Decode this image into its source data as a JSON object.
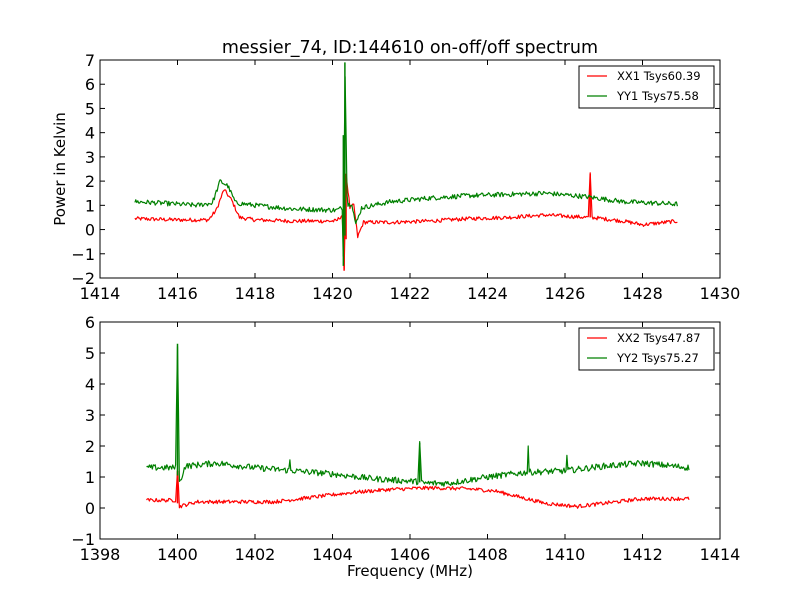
{
  "chart_data": [
    {
      "type": "line",
      "title": "messier_74, ID:144610 on-off/off spectrum",
      "xlabel": "",
      "ylabel": "Power in Kelvin",
      "xlim": [
        1414,
        1430
      ],
      "ylim": [
        -2,
        7
      ],
      "xticks": [
        "1414",
        "1416",
        "1418",
        "1420",
        "1422",
        "1424",
        "1426",
        "1428",
        "1430"
      ],
      "yticks": [
        "−2",
        "−1",
        "0",
        "1",
        "2",
        "3",
        "4",
        "5",
        "6",
        "7"
      ],
      "legend": "top-right",
      "grid": false,
      "series": [
        {
          "name": "XX1 Tsys60.39",
          "color": "#ff0000",
          "x_range": [
            1414.9,
            1428.9
          ],
          "baseline": [
            [
              1414.9,
              0.45
            ],
            [
              1416.0,
              0.4
            ],
            [
              1416.8,
              0.4
            ],
            [
              1417.0,
              0.8
            ],
            [
              1417.2,
              1.65
            ],
            [
              1417.4,
              1.2
            ],
            [
              1417.6,
              0.5
            ],
            [
              1418.0,
              0.4
            ],
            [
              1419.0,
              0.35
            ],
            [
              1420.1,
              0.35
            ],
            [
              1420.25,
              0.6
            ],
            [
              1420.3,
              -1.7
            ],
            [
              1420.35,
              2.3
            ],
            [
              1420.45,
              0.9
            ],
            [
              1420.55,
              1.0
            ],
            [
              1420.65,
              -0.3
            ],
            [
              1420.8,
              0.3
            ],
            [
              1421.5,
              0.3
            ],
            [
              1422.5,
              0.35
            ],
            [
              1423.5,
              0.45
            ],
            [
              1424.5,
              0.5
            ],
            [
              1425.5,
              0.6
            ],
            [
              1426.6,
              0.5
            ],
            [
              1426.65,
              2.3
            ],
            [
              1426.7,
              0.5
            ],
            [
              1427.5,
              0.35
            ],
            [
              1428.0,
              0.2
            ],
            [
              1428.9,
              0.35
            ]
          ],
          "noise": 0.08
        },
        {
          "name": "YY1 Tsys75.58",
          "color": "#008000",
          "x_range": [
            1414.9,
            1428.9
          ],
          "baseline": [
            [
              1414.9,
              1.15
            ],
            [
              1415.5,
              1.1
            ],
            [
              1416.5,
              1.0
            ],
            [
              1416.9,
              1.1
            ],
            [
              1417.1,
              2.0
            ],
            [
              1417.3,
              1.8
            ],
            [
              1417.5,
              1.1
            ],
            [
              1418.0,
              1.0
            ],
            [
              1419.0,
              0.85
            ],
            [
              1420.1,
              0.8
            ],
            [
              1420.25,
              0.9
            ],
            [
              1420.28,
              -1.5
            ],
            [
              1420.32,
              6.9
            ],
            [
              1420.38,
              1.0
            ],
            [
              1420.5,
              1.1
            ],
            [
              1420.6,
              0.2
            ],
            [
              1420.75,
              0.9
            ],
            [
              1421.5,
              1.15
            ],
            [
              1422.5,
              1.3
            ],
            [
              1423.5,
              1.4
            ],
            [
              1424.5,
              1.45
            ],
            [
              1425.5,
              1.5
            ],
            [
              1426.6,
              1.35
            ],
            [
              1427.5,
              1.15
            ],
            [
              1428.9,
              1.05
            ]
          ],
          "noise": 0.1
        }
      ]
    },
    {
      "type": "line",
      "title": "",
      "xlabel": "Frequency (MHz)",
      "ylabel": "",
      "xlim": [
        1398,
        1414
      ],
      "ylim": [
        -1,
        6
      ],
      "xticks": [
        "1398",
        "1400",
        "1402",
        "1404",
        "1406",
        "1408",
        "1410",
        "1412",
        "1414"
      ],
      "yticks": [
        "−1",
        "0",
        "1",
        "2",
        "3",
        "4",
        "5",
        "6"
      ],
      "legend": "top-right",
      "grid": false,
      "series": [
        {
          "name": "XX2 Tsys47.87",
          "color": "#ff0000",
          "x_range": [
            1399.2,
            1413.2
          ],
          "baseline": [
            [
              1399.2,
              0.25
            ],
            [
              1399.95,
              0.25
            ],
            [
              1400.0,
              1.2
            ],
            [
              1400.05,
              0.05
            ],
            [
              1400.5,
              0.2
            ],
            [
              1401.5,
              0.2
            ],
            [
              1402.5,
              0.2
            ],
            [
              1403.5,
              0.35
            ],
            [
              1404.5,
              0.5
            ],
            [
              1405.5,
              0.6
            ],
            [
              1406.5,
              0.65
            ],
            [
              1407.5,
              0.62
            ],
            [
              1408.2,
              0.55
            ],
            [
              1409.0,
              0.3
            ],
            [
              1409.5,
              0.15
            ],
            [
              1410.3,
              0.05
            ],
            [
              1411.0,
              0.15
            ],
            [
              1412.0,
              0.3
            ],
            [
              1413.2,
              0.3
            ]
          ],
          "noise": 0.06
        },
        {
          "name": "YY2 Tsys75.27",
          "color": "#008000",
          "x_range": [
            1399.2,
            1413.2
          ],
          "baseline": [
            [
              1399.2,
              1.3
            ],
            [
              1399.95,
              1.3
            ],
            [
              1400.0,
              5.3
            ],
            [
              1400.05,
              0.8
            ],
            [
              1400.2,
              1.35
            ],
            [
              1401.0,
              1.45
            ],
            [
              1402.0,
              1.3
            ],
            [
              1403.0,
              1.2
            ],
            [
              1404.0,
              1.1
            ],
            [
              1405.0,
              0.95
            ],
            [
              1406.2,
              0.85
            ],
            [
              1406.25,
              2.1
            ],
            [
              1406.3,
              0.8
            ],
            [
              1407.0,
              0.8
            ],
            [
              1408.0,
              1.0
            ],
            [
              1409.0,
              1.15
            ],
            [
              1410.0,
              1.2
            ],
            [
              1411.0,
              1.35
            ],
            [
              1412.0,
              1.45
            ],
            [
              1413.2,
              1.3
            ]
          ],
          "spikes": [
            [
              1402.9,
              1.55
            ],
            [
              1409.05,
              2.0
            ],
            [
              1410.05,
              1.7
            ]
          ],
          "noise": 0.1
        }
      ]
    }
  ]
}
